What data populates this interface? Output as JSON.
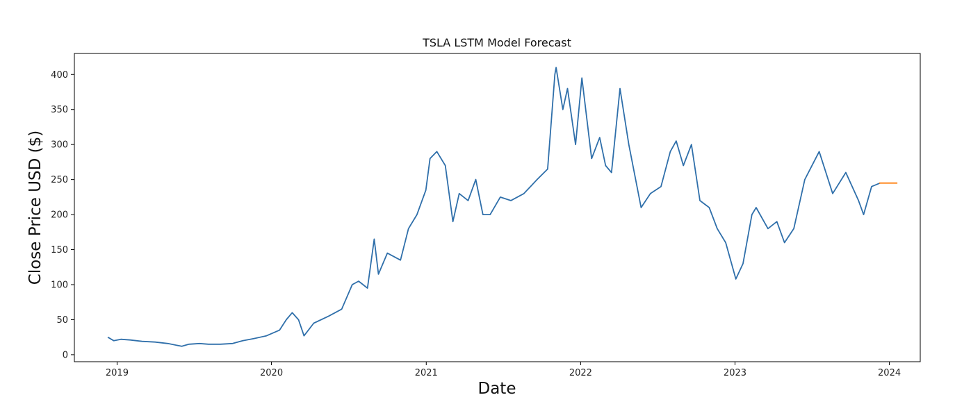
{
  "chart_data": {
    "type": "line",
    "title": "TSLA LSTM Model Forecast",
    "xlabel": "Date",
    "ylabel": "Close Price USD ($)",
    "x_range": [
      "2018-09-22",
      "2024-03-14"
    ],
    "ylim": [
      -10,
      430
    ],
    "x_ticks": [
      {
        "date": "2019-01-01",
        "label": "2019"
      },
      {
        "date": "2020-01-01",
        "label": "2020"
      },
      {
        "date": "2021-01-01",
        "label": "2021"
      },
      {
        "date": "2022-01-01",
        "label": "2022"
      },
      {
        "date": "2023-01-01",
        "label": "2023"
      },
      {
        "date": "2024-01-01",
        "label": "2024"
      }
    ],
    "y_ticks": [
      0,
      50,
      100,
      150,
      200,
      250,
      300,
      350,
      400
    ],
    "grid": false,
    "legend": "none",
    "series": [
      {
        "color": "#2f6faa",
        "points": [
          [
            "2018-12-10",
            25
          ],
          [
            "2018-12-24",
            20
          ],
          [
            "2019-01-10",
            22
          ],
          [
            "2019-02-01",
            21
          ],
          [
            "2019-03-01",
            19
          ],
          [
            "2019-04-01",
            18
          ],
          [
            "2019-05-01",
            16
          ],
          [
            "2019-06-03",
            12
          ],
          [
            "2019-06-20",
            15
          ],
          [
            "2019-07-15",
            16
          ],
          [
            "2019-08-05",
            15
          ],
          [
            "2019-09-02",
            15
          ],
          [
            "2019-10-01",
            16
          ],
          [
            "2019-10-25",
            20
          ],
          [
            "2019-11-20",
            23
          ],
          [
            "2019-12-20",
            27
          ],
          [
            "2020-01-20",
            35
          ],
          [
            "2020-02-05",
            50
          ],
          [
            "2020-02-19",
            60
          ],
          [
            "2020-03-05",
            50
          ],
          [
            "2020-03-18",
            27
          ],
          [
            "2020-04-10",
            45
          ],
          [
            "2020-05-15",
            55
          ],
          [
            "2020-06-15",
            65
          ],
          [
            "2020-07-10",
            100
          ],
          [
            "2020-07-25",
            105
          ],
          [
            "2020-08-15",
            95
          ],
          [
            "2020-08-31",
            165
          ],
          [
            "2020-09-10",
            115
          ],
          [
            "2020-10-01",
            145
          ],
          [
            "2020-11-01",
            135
          ],
          [
            "2020-11-20",
            180
          ],
          [
            "2020-12-10",
            200
          ],
          [
            "2020-12-31",
            235
          ],
          [
            "2021-01-10",
            280
          ],
          [
            "2021-01-26",
            290
          ],
          [
            "2021-02-15",
            270
          ],
          [
            "2021-03-05",
            190
          ],
          [
            "2021-03-20",
            230
          ],
          [
            "2021-04-10",
            220
          ],
          [
            "2021-04-28",
            250
          ],
          [
            "2021-05-15",
            200
          ],
          [
            "2021-06-01",
            200
          ],
          [
            "2021-06-25",
            225
          ],
          [
            "2021-07-20",
            220
          ],
          [
            "2021-08-20",
            230
          ],
          [
            "2021-09-20",
            250
          ],
          [
            "2021-10-15",
            265
          ],
          [
            "2021-11-01",
            400
          ],
          [
            "2021-11-04",
            410
          ],
          [
            "2021-11-20",
            350
          ],
          [
            "2021-12-01",
            380
          ],
          [
            "2021-12-20",
            300
          ],
          [
            "2022-01-04",
            395
          ],
          [
            "2022-01-27",
            280
          ],
          [
            "2022-02-15",
            310
          ],
          [
            "2022-03-01",
            270
          ],
          [
            "2022-03-15",
            260
          ],
          [
            "2022-04-04",
            380
          ],
          [
            "2022-04-25",
            300
          ],
          [
            "2022-05-24",
            210
          ],
          [
            "2022-06-15",
            230
          ],
          [
            "2022-07-10",
            240
          ],
          [
            "2022-08-01",
            290
          ],
          [
            "2022-08-15",
            305
          ],
          [
            "2022-09-01",
            270
          ],
          [
            "2022-09-20",
            300
          ],
          [
            "2022-10-10",
            220
          ],
          [
            "2022-11-01",
            210
          ],
          [
            "2022-11-20",
            180
          ],
          [
            "2022-12-10",
            160
          ],
          [
            "2023-01-03",
            108
          ],
          [
            "2023-01-20",
            130
          ],
          [
            "2023-02-10",
            200
          ],
          [
            "2023-02-20",
            210
          ],
          [
            "2023-03-20",
            180
          ],
          [
            "2023-04-10",
            190
          ],
          [
            "2023-04-28",
            160
          ],
          [
            "2023-05-20",
            180
          ],
          [
            "2023-06-15",
            250
          ],
          [
            "2023-07-19",
            290
          ],
          [
            "2023-08-20",
            230
          ],
          [
            "2023-09-20",
            260
          ],
          [
            "2023-10-20",
            220
          ],
          [
            "2023-11-01",
            200
          ],
          [
            "2023-11-20",
            240
          ],
          [
            "2023-12-10",
            245
          ]
        ]
      },
      {
        "color": "#ff7f0e",
        "points": [
          [
            "2023-12-08",
            245
          ],
          [
            "2023-12-20",
            245
          ],
          [
            "2024-01-05",
            245
          ],
          [
            "2024-01-20",
            245
          ]
        ]
      }
    ]
  }
}
